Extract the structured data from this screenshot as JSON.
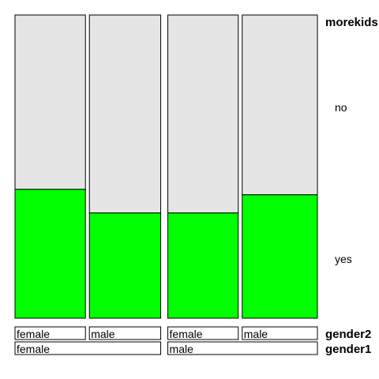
{
  "chart_data": {
    "type": "bar",
    "subtype": "spine-plot",
    "response_variable": "morekids",
    "response_levels": [
      {
        "label": "no",
        "color": "#e5e5e5"
      },
      {
        "label": "yes",
        "color": "#00ff00"
      }
    ],
    "factors": [
      {
        "name": "gender2",
        "levels": [
          "female",
          "male",
          "female",
          "male"
        ]
      },
      {
        "name": "gender1",
        "levels": [
          "female",
          "male"
        ]
      }
    ],
    "groups": [
      {
        "gender1": "female",
        "gender2": "female",
        "share": 0.237,
        "yes_fraction": 0.425
      },
      {
        "gender1": "female",
        "gender2": "male",
        "share": 0.24,
        "yes_fraction": 0.347
      },
      {
        "gender1": "male",
        "gender2": "female",
        "share": 0.237,
        "yes_fraction": 0.347
      },
      {
        "gender1": "male",
        "gender2": "male",
        "share": 0.253,
        "yes_fraction": 0.407
      }
    ]
  }
}
